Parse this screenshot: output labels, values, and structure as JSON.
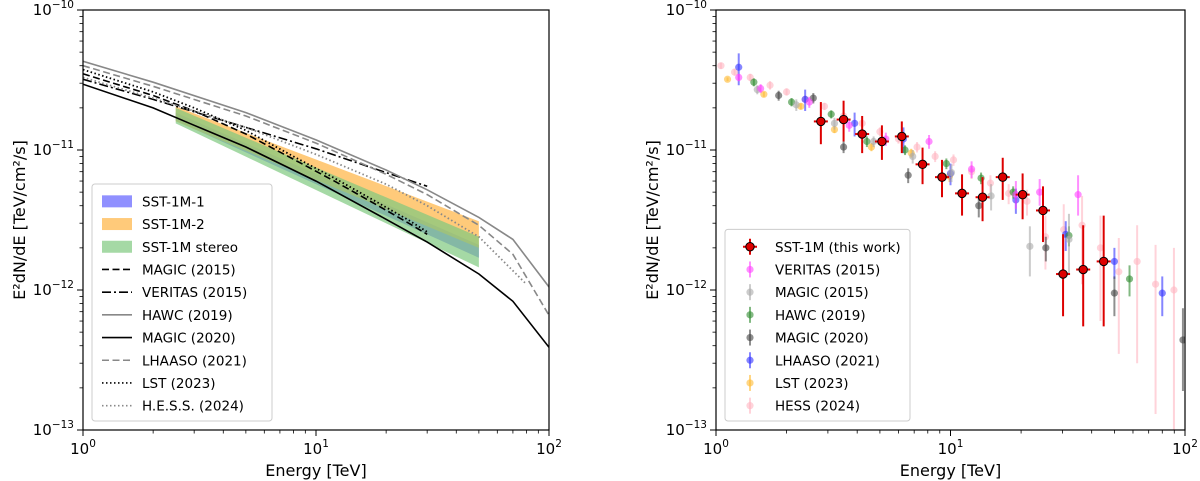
{
  "chart_data": [
    {
      "type": "line",
      "xlabel": "Energy [TeV]",
      "ylabel": "E²dN/dE [TeV/cm²/s]",
      "xscale": "log",
      "yscale": "log",
      "xlim": [
        1,
        100
      ],
      "ylim": [
        1e-13,
        1e-10
      ],
      "grid": false,
      "legend_placement": "lower-left",
      "x_ticks": [
        {
          "value": 1,
          "base": "10",
          "exp": "0"
        },
        {
          "value": 10,
          "base": "10",
          "exp": "1"
        },
        {
          "value": 100,
          "base": "10",
          "exp": "2"
        }
      ],
      "y_ticks": [
        {
          "value": 1e-13,
          "base": "10",
          "exp": "−13"
        },
        {
          "value": 1e-12,
          "base": "10",
          "exp": "−12"
        },
        {
          "value": 1e-11,
          "base": "10",
          "exp": "−11"
        },
        {
          "value": 1e-10,
          "base": "10",
          "exp": "−10"
        }
      ],
      "bands": [
        {
          "name": "SST-1M-1",
          "color": "#6b6bff",
          "opacity": 0.75,
          "x": [
            2.5,
            50
          ],
          "lower": [
            1.62e-11,
            1.7e-12
          ],
          "upper": [
            1.85e-11,
            2.1e-12
          ]
        },
        {
          "name": "SST-1M-2",
          "color": "#ffb84d",
          "opacity": 0.75,
          "x": [
            2.5,
            50
          ],
          "lower": [
            1.6e-11,
            2e-12
          ],
          "upper": [
            2.05e-11,
            3.1e-12
          ]
        },
        {
          "name": "SST-1M stereo",
          "color": "#7fc97f",
          "opacity": 0.7,
          "x": [
            2.5,
            50
          ],
          "lower": [
            1.55e-11,
            1.45e-12
          ],
          "upper": [
            2e-11,
            2.4e-12
          ]
        }
      ],
      "series": [
        {
          "name": "MAGIC (2015)",
          "style": "dashed",
          "color": "#000000",
          "x": [
            1,
            2,
            3,
            5,
            8,
            12,
            18,
            25,
            30
          ],
          "y": [
            3.5e-11,
            2.45e-11,
            1.9e-11,
            1.3e-11,
            8.6e-12,
            6e-12,
            4.1e-12,
            3e-12,
            2.5e-12
          ]
        },
        {
          "name": "VERITAS (2015)",
          "style": "dashdot",
          "color": "#000000",
          "x": [
            1,
            2,
            5,
            10,
            20,
            30
          ],
          "y": [
            3.2e-11,
            2.3e-11,
            1.45e-11,
            1.02e-11,
            6.9e-12,
            5.5e-12
          ]
        },
        {
          "name": "HAWC (2019)",
          "style": "solid",
          "color": "#888888",
          "x": [
            1,
            2,
            5,
            10,
            20,
            30,
            50,
            70,
            100
          ],
          "y": [
            4.3e-11,
            3.05e-11,
            1.85e-11,
            1.18e-11,
            7.2e-12,
            5.2e-12,
            3.3e-12,
            2.3e-12,
            1.05e-12
          ]
        },
        {
          "name": "MAGIC (2020)",
          "style": "solid",
          "color": "#000000",
          "x": [
            1,
            2,
            3,
            5,
            10,
            20,
            30,
            50,
            70,
            100
          ],
          "y": [
            2.95e-11,
            2e-11,
            1.5e-11,
            1.05e-11,
            6e-12,
            3.2e-12,
            2.2e-12,
            1.3e-12,
            8.3e-13,
            3.9e-13
          ]
        },
        {
          "name": "LHAASO (2021)",
          "style": "dashed",
          "color": "#888888",
          "x": [
            1,
            2,
            5,
            10,
            20,
            30,
            50,
            70,
            100
          ],
          "y": [
            4e-11,
            2.85e-11,
            1.75e-11,
            1.12e-11,
            6.7e-12,
            4.8e-12,
            2.9e-12,
            1.8e-12,
            6.6e-13
          ]
        },
        {
          "name": "LST (2023)",
          "style": "dotted",
          "color": "#000000",
          "x": [
            1,
            2,
            3,
            5,
            8,
            12,
            18,
            25,
            30
          ],
          "y": [
            3.75e-11,
            2.6e-11,
            2e-11,
            1.38e-11,
            9e-12,
            6.3e-12,
            4.3e-12,
            3.15e-12,
            2.6e-12
          ]
        },
        {
          "name": "H.E.S.S. (2024)",
          "style": "dotted",
          "color": "#888888",
          "x": [
            1,
            2,
            5,
            10,
            20,
            30,
            50,
            80
          ],
          "y": [
            3.3e-11,
            2.35e-11,
            1.45e-11,
            9.3e-12,
            5.7e-12,
            4e-12,
            2.4e-12,
            1.1e-12
          ]
        }
      ]
    },
    {
      "type": "scatter",
      "xlabel": "Energy [TeV]",
      "ylabel": "E²dN/dE [TeV/cm²/s]",
      "xscale": "log",
      "yscale": "log",
      "xlim": [
        1,
        100
      ],
      "ylim": [
        1e-13,
        1e-10
      ],
      "grid": false,
      "legend_placement": "lower-left",
      "x_ticks": [
        {
          "value": 1,
          "base": "10",
          "exp": "0"
        },
        {
          "value": 10,
          "base": "10",
          "exp": "1"
        },
        {
          "value": 100,
          "base": "10",
          "exp": "2"
        }
      ],
      "y_ticks": [
        {
          "value": 1e-13,
          "base": "10",
          "exp": "−13"
        },
        {
          "value": 1e-12,
          "base": "10",
          "exp": "−12"
        },
        {
          "value": 1e-11,
          "base": "10",
          "exp": "−11"
        },
        {
          "value": 1e-10,
          "base": "10",
          "exp": "−10"
        }
      ],
      "series": [
        {
          "name": "SST-1M (this work)",
          "color": "#dd0000",
          "marker": "circle-outlined",
          "x": [
            2.8,
            3.5,
            4.2,
            5.1,
            6.2,
            7.6,
            9.2,
            11.2,
            13.7,
            16.7,
            20.3,
            24.8,
            30.2,
            36.8,
            45
          ],
          "y": [
            1.6e-11,
            1.65e-11,
            1.3e-11,
            1.15e-11,
            1.25e-11,
            7.9e-12,
            6.4e-12,
            4.9e-12,
            4.6e-12,
            6.4e-12,
            4.8e-12,
            3.7e-12,
            1.3e-12,
            1.4e-12,
            1.6e-12
          ],
          "yerr_low": [
            5e-12,
            5e-12,
            3.5e-12,
            3e-12,
            3e-12,
            2.2e-12,
            1.8e-12,
            1.5e-12,
            1.5e-12,
            2e-12,
            1.6e-12,
            1.5e-12,
            6.5e-13,
            8.5e-13,
            1.05e-12
          ],
          "yerr_high": [
            6e-12,
            6e-12,
            4.5e-12,
            3.5e-12,
            3.5e-12,
            2.5e-12,
            2.1e-12,
            1.8e-12,
            1.8e-12,
            2.4e-12,
            2e-12,
            1.8e-12,
            1.2e-12,
            1.5e-12,
            1.8e-12
          ]
        },
        {
          "name": "VERITAS (2015)",
          "color": "#ff44ff",
          "marker": "circle",
          "x": [
            1.25,
            1.55,
            2.5,
            3.7,
            5.3,
            8.1,
            12.3,
            19.0,
            24.0,
            35.0
          ],
          "y": [
            3.3e-11,
            2.75e-11,
            2.2e-11,
            1.5e-11,
            1.2e-11,
            1.15e-11,
            7.3e-12,
            4.8e-12,
            5e-12,
            4.8e-12
          ],
          "yerr_low": [
            2e-12,
            2e-12,
            2e-12,
            1.5e-12,
            1.3e-12,
            1.3e-12,
            1e-12,
            1e-12,
            1e-12,
            1.4e-12
          ],
          "yerr_high": [
            2e-12,
            2e-12,
            2e-12,
            1.5e-12,
            1.3e-12,
            1.3e-12,
            1e-12,
            1.2e-12,
            1.2e-12,
            1.8e-12
          ]
        },
        {
          "name": "MAGIC (2015)",
          "color": "#aaaaaa",
          "marker": "circle",
          "x": [
            1.5,
            2.2,
            3.2,
            4.7,
            6.9,
            10.1,
            14.9,
            21.8,
            32.0
          ],
          "y": [
            2.7e-11,
            2.1e-11,
            1.55e-11,
            1.15e-11,
            9e-12,
            6.9e-12,
            4.7e-12,
            2.05e-12,
            2.3e-12
          ],
          "yerr_low": [
            2e-12,
            2e-12,
            1.5e-12,
            1e-12,
            1e-12,
            1e-12,
            1e-12,
            8e-13,
            1e-12
          ],
          "yerr_high": [
            2e-12,
            2e-12,
            1.5e-12,
            1e-12,
            1e-12,
            1e-12,
            1e-12,
            8e-13,
            1.2e-12
          ]
        },
        {
          "name": "HAWC (2019)",
          "color": "#2e8b2e",
          "marker": "circle",
          "x": [
            1.45,
            2.1,
            3.1,
            4.4,
            6.4,
            9.6,
            13.5,
            18.5,
            32.0,
            58.0
          ],
          "y": [
            3.05e-11,
            2.2e-11,
            1.8e-11,
            1.15e-11,
            1e-11,
            8e-12,
            6.3e-12,
            5e-12,
            2.45e-12,
            1.2e-12
          ],
          "yerr_low": [
            2e-12,
            1.5e-12,
            1.2e-12,
            1e-12,
            8e-13,
            7e-13,
            6e-13,
            5e-13,
            4e-13,
            3e-13
          ],
          "yerr_high": [
            2e-12,
            1.5e-12,
            1.2e-12,
            1e-12,
            8e-13,
            7e-13,
            6e-13,
            5e-13,
            4e-13,
            3e-13
          ]
        },
        {
          "name": "MAGIC (2020)",
          "color": "#444444",
          "marker": "circle",
          "x": [
            1.85,
            2.6,
            3.5,
            6.6,
            13.2,
            25.5,
            50.0,
            98.0
          ],
          "y": [
            2.45e-11,
            2.35e-11,
            1.05e-11,
            6.6e-12,
            4e-12,
            2e-12,
            9.5e-13,
            4.4e-13
          ],
          "yerr_low": [
            2e-12,
            2e-12,
            1e-12,
            8e-13,
            7e-13,
            4e-13,
            3e-13,
            2.5e-13
          ],
          "yerr_high": [
            2e-12,
            2e-12,
            1e-12,
            8e-13,
            7e-13,
            4e-13,
            3e-13,
            3e-13
          ]
        },
        {
          "name": "LHAASO (2021)",
          "color": "#3333ff",
          "marker": "circle",
          "x": [
            1.25,
            2.4,
            3.9,
            6.3,
            10.0,
            19.0,
            31.0,
            50.0,
            80.0
          ],
          "y": [
            3.9e-11,
            2.3e-11,
            1.55e-11,
            1.2e-11,
            6.8e-12,
            4.4e-12,
            2.5e-12,
            1.6e-12,
            9.5e-13
          ],
          "yerr_low": [
            1e-11,
            4e-12,
            3e-12,
            2.5e-12,
            1.2e-12,
            9e-13,
            6e-13,
            4e-13,
            3e-13
          ],
          "yerr_high": [
            1e-11,
            4e-12,
            3e-12,
            2.5e-12,
            1.2e-12,
            9e-13,
            6e-13,
            4e-13,
            3e-13
          ]
        },
        {
          "name": "LST (2023)",
          "color": "#ffbb33",
          "marker": "circle",
          "x": [
            1.12,
            1.6,
            2.3,
            3.2,
            4.6,
            6.8,
            9.9
          ],
          "y": [
            3.2e-11,
            2.5e-11,
            2.05e-11,
            1.4e-11,
            1.05e-11,
            9.5e-12,
            6.5e-12
          ],
          "yerr_low": [
            1e-12,
            1e-12,
            1e-12,
            8e-13,
            7e-13,
            7e-13,
            6e-13
          ],
          "yerr_high": [
            1e-12,
            1e-12,
            1e-12,
            8e-13,
            7e-13,
            7e-13,
            6e-13
          ]
        },
        {
          "name": "HESS (2024)",
          "color": "#ffb6c1",
          "marker": "circle",
          "x": [
            1.05,
            1.2,
            1.4,
            1.7,
            2.0,
            2.4,
            2.9,
            3.5,
            4.2,
            5.0,
            6.0,
            7.2,
            8.6,
            10.3,
            12.3,
            14.8,
            17.7,
            21.2,
            25.4,
            30.4,
            36.4,
            43.6,
            52.2,
            62.5,
            74.9,
            89.7
          ],
          "y": [
            4e-11,
            3.6e-11,
            3.3e-11,
            2.9e-11,
            2.6e-11,
            2.3e-11,
            2.05e-11,
            1.75e-11,
            1.55e-11,
            1.35e-11,
            1.2e-11,
            1.05e-11,
            9e-12,
            8.5e-12,
            7e-12,
            5.8e-12,
            4.9e-12,
            4.3e-12,
            2.4e-12,
            2.7e-12,
            2.9e-12,
            2e-12,
            1.35e-12,
            1.6e-12,
            1.1e-12,
            1e-12
          ],
          "yerr_low": [
            2e-12,
            2e-12,
            2e-12,
            2e-12,
            1.5e-12,
            1.5e-12,
            1.2e-12,
            1.2e-12,
            1e-12,
            1e-12,
            9e-13,
            9e-13,
            8e-13,
            8e-13,
            8e-13,
            8e-13,
            8e-13,
            9e-13,
            1e-12,
            1.4e-12,
            1.8e-12,
            1.4e-12,
            1e-12,
            1.3e-12,
            9.7e-13,
            9e-13
          ],
          "yerr_high": [
            2e-12,
            2e-12,
            2e-12,
            2e-12,
            1.5e-12,
            1.5e-12,
            1.2e-12,
            1.2e-12,
            1e-12,
            1e-12,
            9e-13,
            9e-13,
            8e-13,
            8e-13,
            8e-13,
            8e-13,
            8e-13,
            9e-13,
            1e-12,
            1.4e-12,
            1.8e-12,
            1.4e-12,
            1e-12,
            1.3e-12,
            1e-12,
            1e-12
          ]
        }
      ]
    }
  ]
}
